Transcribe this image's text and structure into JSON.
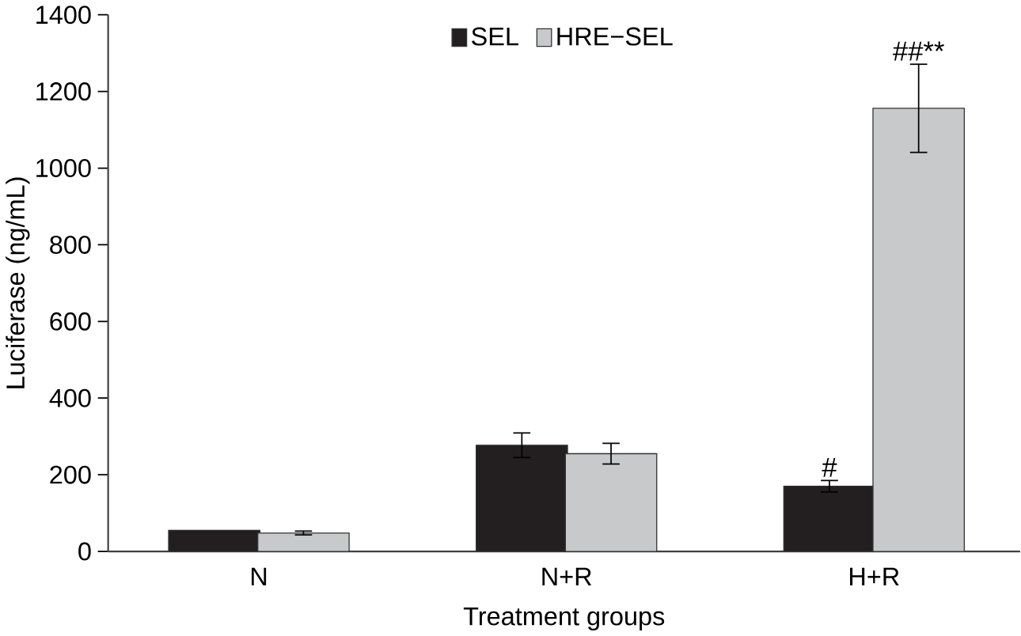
{
  "chart_data": {
    "type": "bar",
    "xlabel": "Treatment groups",
    "ylabel": "Luciferase (ng/mL)",
    "categories": [
      "N",
      "N+R",
      "H+R"
    ],
    "series": [
      {
        "name": "SEL",
        "color": "#231f20",
        "values": [
          55,
          277,
          170
        ],
        "errors": [
          null,
          32,
          15
        ]
      },
      {
        "name": "HRE−SEL",
        "color": "#c8c9cb",
        "values": [
          48,
          255,
          1156
        ],
        "errors": [
          5,
          27,
          115
        ]
      }
    ],
    "ylim": [
      0,
      1400
    ],
    "yticks": [
      0,
      200,
      400,
      600,
      800,
      1000,
      1200,
      1400
    ],
    "legend": "top",
    "grid": false,
    "annotations": [
      {
        "text": "#",
        "x": "H+R",
        "y": 170
      },
      {
        "text": "##**",
        "x": "H+R",
        "y": 1156
      }
    ]
  }
}
